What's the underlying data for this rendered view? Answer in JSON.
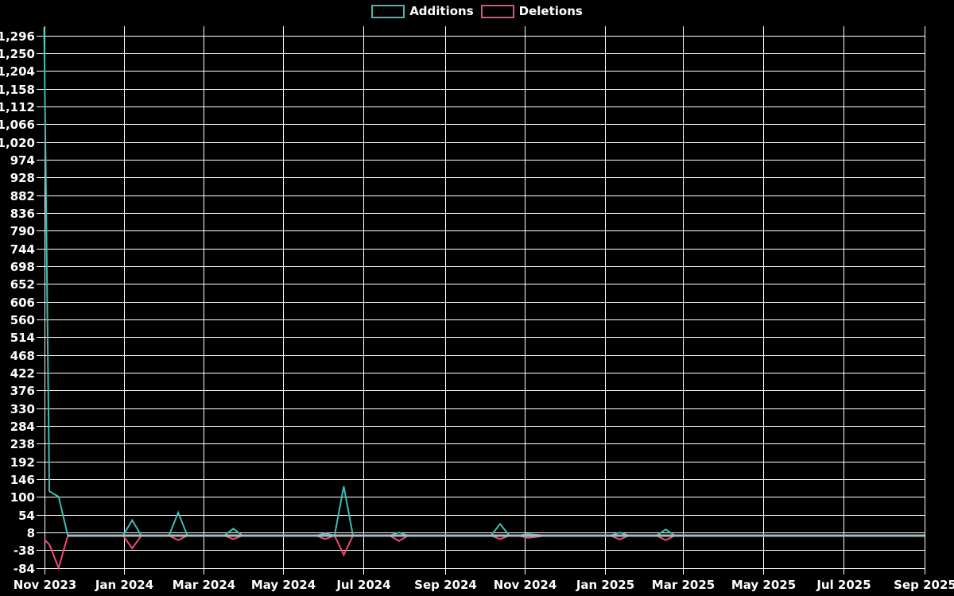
{
  "chart_data": {
    "type": "line",
    "title": "",
    "legend_position": "top-center",
    "background_color": "#000000",
    "grid_color": "#ffffff",
    "text_color": "#ffffff",
    "zero_baseline_color": "#a9bac1",
    "x_axis": {
      "start_date": "2023-11-01",
      "end_date": "2025-09-01",
      "interval": "weekly",
      "ticks": [
        {
          "label": "Nov 2023",
          "date": "2023-11-01"
        },
        {
          "label": "Jan 2024",
          "date": "2024-01-01"
        },
        {
          "label": "Mar 2024",
          "date": "2024-03-01"
        },
        {
          "label": "May 2024",
          "date": "2024-05-01"
        },
        {
          "label": "Jul 2024",
          "date": "2024-07-01"
        },
        {
          "label": "Sep 2024",
          "date": "2024-09-01"
        },
        {
          "label": "Nov 2024",
          "date": "2024-11-01"
        },
        {
          "label": "Jan 2025",
          "date": "2025-01-01"
        },
        {
          "label": "Mar 2025",
          "date": "2025-03-01"
        },
        {
          "label": "May 2025",
          "date": "2025-05-01"
        },
        {
          "label": "Jul 2025",
          "date": "2025-07-01"
        },
        {
          "label": "Sep 2025",
          "date": "2025-09-01"
        }
      ]
    },
    "y_axis": {
      "min": -84,
      "max": 1296,
      "step": 46,
      "ticks": [
        1296,
        1250,
        1204,
        1158,
        1112,
        1066,
        1020,
        974,
        928,
        882,
        836,
        790,
        744,
        698,
        652,
        606,
        560,
        514,
        468,
        422,
        376,
        330,
        284,
        238,
        192,
        146,
        100,
        54,
        8,
        -38,
        -84
      ]
    },
    "weekly_range": {
      "first_sunday": "2023-11-05",
      "last_sunday": "2025-08-31"
    },
    "series": [
      {
        "name": "Additions",
        "color": "#3fbcb3",
        "default_value": 0,
        "points": [
          {
            "date": "2023-11-01",
            "value": 1318
          },
          {
            "date": "2023-11-05",
            "value": 115
          },
          {
            "date": "2023-11-12",
            "value": 101
          },
          {
            "date": "2024-01-07",
            "value": 40
          },
          {
            "date": "2024-02-11",
            "value": 60
          },
          {
            "date": "2024-03-24",
            "value": 18
          },
          {
            "date": "2024-06-02",
            "value": 6
          },
          {
            "date": "2024-06-16",
            "value": 128
          },
          {
            "date": "2024-07-28",
            "value": 8
          },
          {
            "date": "2024-10-13",
            "value": 30
          },
          {
            "date": "2024-11-03",
            "value": 4
          },
          {
            "date": "2024-11-10",
            "value": 2
          },
          {
            "date": "2025-01-12",
            "value": 8
          },
          {
            "date": "2025-02-16",
            "value": 16
          }
        ]
      },
      {
        "name": "Deletions",
        "color": "#ee4c74",
        "default_value": 0,
        "points": [
          {
            "date": "2023-11-01",
            "value": -10
          },
          {
            "date": "2023-11-05",
            "value": -23
          },
          {
            "date": "2023-11-12",
            "value": -84
          },
          {
            "date": "2024-01-07",
            "value": -33
          },
          {
            "date": "2024-02-11",
            "value": -12
          },
          {
            "date": "2024-03-24",
            "value": -9
          },
          {
            "date": "2024-06-02",
            "value": -9
          },
          {
            "date": "2024-06-16",
            "value": -50
          },
          {
            "date": "2024-07-28",
            "value": -14
          },
          {
            "date": "2024-10-13",
            "value": -9
          },
          {
            "date": "2024-11-03",
            "value": -6
          },
          {
            "date": "2024-11-10",
            "value": -3
          },
          {
            "date": "2025-01-12",
            "value": -10
          },
          {
            "date": "2025-02-16",
            "value": -12
          }
        ]
      }
    ]
  }
}
